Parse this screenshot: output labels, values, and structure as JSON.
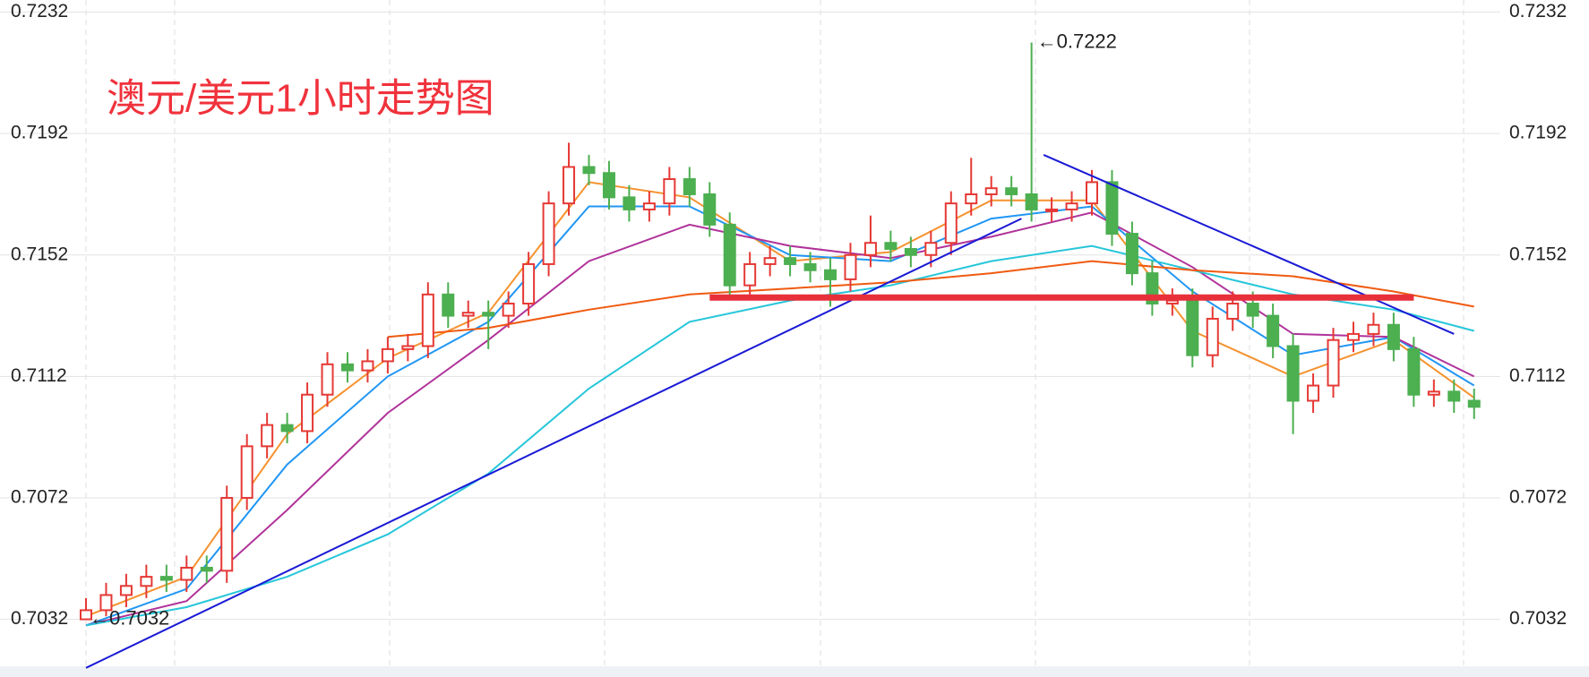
{
  "chart_data": {
    "type": "candlestick",
    "title": "澳元/美元1小时走势图",
    "annotations": [
      "←0.7222",
      "←0.7032"
    ],
    "ylim": [
      0.7013,
      0.7236
    ],
    "yticks": [
      0.7032,
      0.7072,
      0.7112,
      0.7152,
      0.7192,
      0.7232
    ],
    "grid": true,
    "up_color": "#e53935",
    "down_color": "#4caf50",
    "open": [
      0.7032,
      0.7035,
      0.704,
      0.7043,
      0.7046,
      0.7045,
      0.7049,
      0.7048,
      0.7072,
      0.7089,
      0.7096,
      0.7094,
      0.7106,
      0.7116,
      0.7114,
      0.7117,
      0.7121,
      0.7122,
      0.7139,
      0.7132,
      0.7133,
      0.7132,
      0.7136,
      0.7149,
      0.7169,
      0.7181,
      0.7179,
      0.7171,
      0.7167,
      0.7169,
      0.7177,
      0.7172,
      0.7162,
      0.7142,
      0.7149,
      0.7151,
      0.7149,
      0.7147,
      0.7144,
      0.7152,
      0.7156,
      0.7154,
      0.7152,
      0.7156,
      0.7169,
      0.7172,
      0.7174,
      0.7172,
      0.7167,
      0.7167,
      0.7169,
      0.7176,
      0.7159,
      0.7146,
      0.7136,
      0.7137,
      0.7119,
      0.7131,
      0.7136,
      0.7132,
      0.7122,
      0.7104,
      0.7109,
      0.7124,
      0.7126,
      0.7129,
      0.7121,
      0.7106,
      0.7107,
      0.7104
    ],
    "high": [
      0.7039,
      0.7044,
      0.7047,
      0.705,
      0.705,
      0.7053,
      0.7053,
      0.7076,
      0.7093,
      0.71,
      0.71,
      0.711,
      0.712,
      0.712,
      0.7121,
      0.7125,
      0.7126,
      0.7143,
      0.7143,
      0.7137,
      0.7137,
      0.714,
      0.7153,
      0.7173,
      0.7189,
      0.7185,
      0.7183,
      0.7175,
      0.7173,
      0.7181,
      0.7181,
      0.7176,
      0.7166,
      0.7153,
      0.7155,
      0.7155,
      0.7153,
      0.7151,
      0.7156,
      0.7165,
      0.716,
      0.7158,
      0.716,
      0.7173,
      0.7184,
      0.7178,
      0.7178,
      0.7222,
      0.7171,
      0.7173,
      0.718,
      0.718,
      0.7163,
      0.715,
      0.7141,
      0.7141,
      0.7135,
      0.714,
      0.714,
      0.7136,
      0.7126,
      0.7113,
      0.7128,
      0.713,
      0.7133,
      0.7133,
      0.7125,
      0.7111,
      0.7111,
      0.7108
    ],
    "low": [
      0.7032,
      0.7033,
      0.7036,
      0.7039,
      0.7041,
      0.7041,
      0.7044,
      0.7044,
      0.7068,
      0.7085,
      0.709,
      0.709,
      0.7102,
      0.711,
      0.711,
      0.7113,
      0.7117,
      0.7118,
      0.7128,
      0.7128,
      0.7121,
      0.7128,
      0.7132,
      0.7145,
      0.7165,
      0.7175,
      0.7167,
      0.7163,
      0.7163,
      0.7165,
      0.7168,
      0.7158,
      0.7138,
      0.7138,
      0.7145,
      0.7145,
      0.7143,
      0.7135,
      0.714,
      0.7148,
      0.715,
      0.7148,
      0.7148,
      0.7152,
      0.7165,
      0.7168,
      0.7168,
      0.7163,
      0.7163,
      0.7163,
      0.7165,
      0.7155,
      0.7142,
      0.7132,
      0.7132,
      0.7115,
      0.7115,
      0.7127,
      0.7128,
      0.7118,
      0.7093,
      0.71,
      0.7105,
      0.712,
      0.7122,
      0.7117,
      0.7102,
      0.7102,
      0.71,
      0.7098
    ],
    "close": [
      0.7035,
      0.704,
      0.7043,
      0.7046,
      0.7045,
      0.7049,
      0.7048,
      0.7072,
      0.7089,
      0.7096,
      0.7094,
      0.7106,
      0.7116,
      0.7114,
      0.7117,
      0.7121,
      0.7122,
      0.7139,
      0.7132,
      0.7133,
      0.7132,
      0.7136,
      0.7149,
      0.7169,
      0.7181,
      0.7179,
      0.7171,
      0.7167,
      0.7169,
      0.7177,
      0.7172,
      0.7162,
      0.7142,
      0.7149,
      0.7151,
      0.7149,
      0.7147,
      0.7144,
      0.7152,
      0.7156,
      0.7154,
      0.7152,
      0.7156,
      0.7169,
      0.7172,
      0.7174,
      0.7172,
      0.7167,
      0.7167,
      0.7169,
      0.7176,
      0.7159,
      0.7146,
      0.7136,
      0.7137,
      0.7119,
      0.7131,
      0.7136,
      0.7132,
      0.7122,
      0.7104,
      0.7109,
      0.7124,
      0.7126,
      0.7129,
      0.7121,
      0.7106,
      0.7107,
      0.7104,
      0.7102
    ],
    "moving_averages": [
      {
        "color": "#f5922f",
        "x": [
          0,
          5,
          10,
          15,
          20,
          25,
          30,
          35,
          40,
          45,
          50,
          55,
          60,
          65,
          69
        ],
        "values": [
          0.7033,
          0.7046,
          0.7093,
          0.7118,
          0.7133,
          0.7176,
          0.7171,
          0.715,
          0.7153,
          0.717,
          0.717,
          0.7127,
          0.7112,
          0.7124,
          0.7105
        ]
      },
      {
        "color": "#2196f3",
        "x": [
          0,
          5,
          10,
          15,
          20,
          25,
          30,
          35,
          40,
          45,
          50,
          55,
          60,
          65,
          69
        ],
        "values": [
          0.703,
          0.7042,
          0.7083,
          0.7112,
          0.713,
          0.7168,
          0.7168,
          0.7152,
          0.715,
          0.7164,
          0.7168,
          0.714,
          0.7119,
          0.7125,
          0.7109
        ]
      },
      {
        "color": "#b0329a",
        "x": [
          0,
          5,
          10,
          15,
          20,
          25,
          30,
          35,
          40,
          45,
          50,
          55,
          60,
          65,
          69
        ],
        "values": [
          0.703,
          0.7038,
          0.7068,
          0.71,
          0.7124,
          0.715,
          0.7162,
          0.7155,
          0.7151,
          0.7158,
          0.7166,
          0.7148,
          0.7126,
          0.7125,
          0.7112
        ]
      },
      {
        "color": "#26c6da",
        "x": [
          0,
          5,
          10,
          15,
          20,
          25,
          30,
          35,
          40,
          45,
          50,
          55,
          60,
          65,
          69
        ],
        "values": [
          0.703,
          0.7036,
          0.7046,
          0.706,
          0.708,
          0.7108,
          0.713,
          0.7137,
          0.7142,
          0.715,
          0.7155,
          0.7147,
          0.7139,
          0.7134,
          0.7127
        ]
      },
      {
        "color": "#f05a10",
        "x": [
          15,
          20,
          25,
          30,
          35,
          40,
          45,
          50,
          55,
          60,
          65,
          69
        ],
        "values": [
          0.7125,
          0.7128,
          0.7134,
          0.7139,
          0.7141,
          0.7143,
          0.7146,
          0.715,
          0.7147,
          0.7145,
          0.714,
          0.7135
        ]
      }
    ],
    "trendlines": [
      {
        "color": "#1a1ad6",
        "x": [
          0,
          46.5
        ],
        "values": [
          0.7016,
          0.7164
        ]
      },
      {
        "color": "#1a1ad6",
        "x": [
          47.6,
          68
        ],
        "values": [
          0.7185,
          0.7126
        ]
      }
    ],
    "support_line": {
      "color": "#e8303a",
      "x": [
        31,
        66
      ],
      "values": [
        0.7138,
        0.7138
      ]
    }
  }
}
